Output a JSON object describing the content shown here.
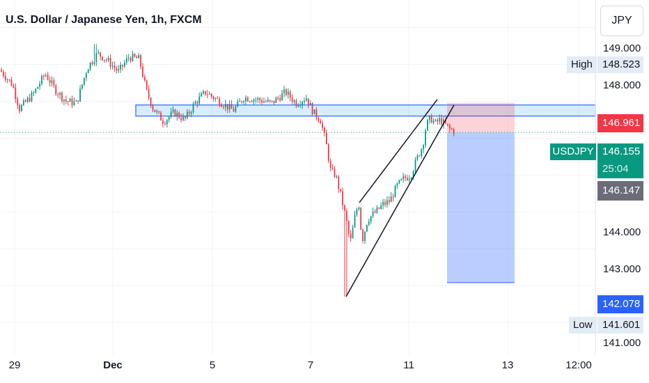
{
  "header": {
    "title": "U.S. Dollar / Japanese Yen, 1h, FXCM"
  },
  "currency_button": {
    "label": "JPY"
  },
  "price_axis": {
    "ticks": [
      {
        "label": "149.000",
        "value": 149.0
      },
      {
        "label": "148.000",
        "value": 148.0
      },
      {
        "label": "144.000",
        "value": 144.0
      },
      {
        "label": "143.000",
        "value": 143.0
      },
      {
        "label": "141.000",
        "value": 141.0
      }
    ],
    "high": {
      "label": "High",
      "value_text": "148.523",
      "value": 148.523
    },
    "low": {
      "label": "Low",
      "value_text": "141.601",
      "value": 141.601
    },
    "stop_loss": {
      "value_text": "146.961",
      "value": 146.961,
      "color": "#f23645"
    },
    "current": {
      "symbol": "USDJPY",
      "value_text": "146.155",
      "value": 146.155,
      "countdown": "25:04",
      "color": "#089981"
    },
    "previous_close": {
      "value_text": "146.147",
      "value": 146.147,
      "color": "#6a6d78"
    },
    "take_profit": {
      "value_text": "142.078",
      "value": 142.078,
      "color": "#2962ff"
    }
  },
  "time_axis": {
    "ticks": [
      {
        "label": "29",
        "bold": false
      },
      {
        "label": "Dec",
        "bold": true
      },
      {
        "label": "5",
        "bold": false
      },
      {
        "label": "7",
        "bold": false
      },
      {
        "label": "11",
        "bold": false
      },
      {
        "label": "13",
        "bold": false
      },
      {
        "label": "12:00",
        "bold": false
      }
    ]
  },
  "chart_data": {
    "type": "candlestick",
    "title": "U.S. Dollar / Japanese Yen, 1h, FXCM",
    "ylim": [
      140.85,
      149.75
    ],
    "colors": {
      "up": "#089981",
      "down": "#f23645"
    },
    "path_points": [
      [
        0,
        147.85
      ],
      [
        18,
        147.45
      ],
      [
        28,
        146.8
      ],
      [
        48,
        147.2
      ],
      [
        65,
        147.75
      ],
      [
        80,
        147.3
      ],
      [
        95,
        147.0
      ],
      [
        110,
        146.95
      ],
      [
        125,
        147.9
      ],
      [
        140,
        148.3
      ],
      [
        155,
        148.1
      ],
      [
        170,
        147.8
      ],
      [
        185,
        148.2
      ],
      [
        200,
        148.15
      ],
      [
        210,
        147.3
      ],
      [
        220,
        146.8
      ],
      [
        235,
        146.45
      ],
      [
        250,
        146.7
      ],
      [
        265,
        146.5
      ],
      [
        280,
        146.95
      ],
      [
        295,
        147.25
      ],
      [
        315,
        147.0
      ],
      [
        335,
        146.75
      ],
      [
        350,
        147.1
      ],
      [
        370,
        147.05
      ],
      [
        390,
        146.95
      ],
      [
        410,
        147.25
      ],
      [
        425,
        146.95
      ],
      [
        440,
        147.1
      ],
      [
        450,
        146.7
      ],
      [
        460,
        146.5
      ],
      [
        468,
        145.9
      ],
      [
        475,
        145.1
      ],
      [
        482,
        145.0
      ],
      [
        490,
        144.4
      ],
      [
        497,
        143.8
      ],
      [
        503,
        143.15
      ],
      [
        510,
        143.9
      ],
      [
        515,
        144.25
      ],
      [
        520,
        143.2
      ],
      [
        528,
        143.8
      ],
      [
        540,
        144.0
      ],
      [
        550,
        144.2
      ],
      [
        560,
        144.3
      ],
      [
        570,
        144.7
      ],
      [
        580,
        144.9
      ],
      [
        590,
        145.0
      ],
      [
        600,
        145.5
      ],
      [
        607,
        145.8
      ],
      [
        612,
        146.35
      ],
      [
        618,
        146.55
      ],
      [
        625,
        146.4
      ],
      [
        632,
        146.5
      ],
      [
        638,
        146.4
      ],
      [
        645,
        146.25
      ],
      [
        652,
        146.2
      ]
    ],
    "support_zone": {
      "top": 146.9,
      "bottom": 146.6
    },
    "current_price_line": 146.155,
    "position_tool": {
      "stop_loss": 146.961,
      "entry": 146.155,
      "take_profit": 142.078
    },
    "rising_wedge": {
      "upper_line": [
        [
          143.8,
          "first"
        ],
        [
          146.9,
          "last"
        ]
      ],
      "lower_line": [
        [
          141.7,
          "first"
        ],
        [
          146.9,
          "last"
        ]
      ]
    }
  }
}
